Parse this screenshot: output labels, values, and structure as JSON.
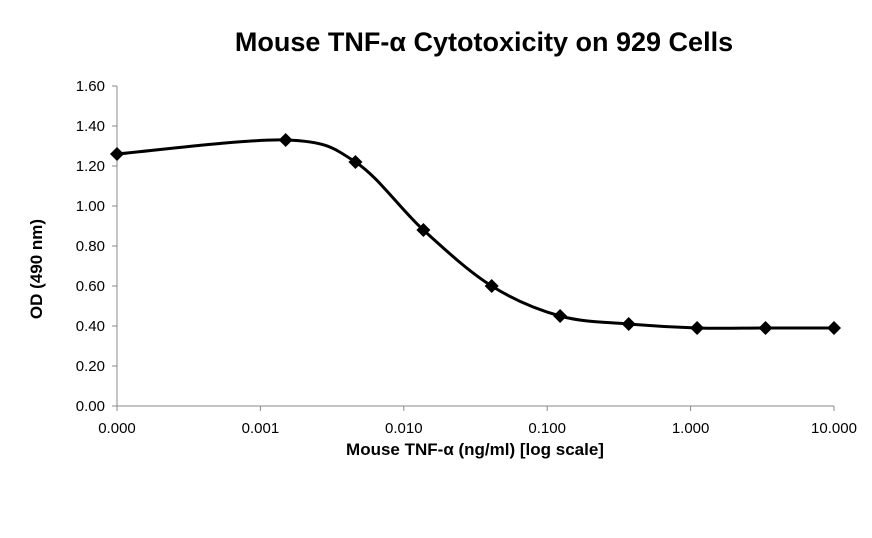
{
  "chart_data": {
    "type": "line",
    "title": "Mouse TNF-α Cytotoxicity on 929 Cells",
    "xlabel": "Mouse TNF-α (ng/ml) [log scale]",
    "ylabel": "OD (490 nm)",
    "x_scale": "log",
    "x_ticks": [
      "0.000",
      "0.001",
      "0.010",
      "0.100",
      "1.000",
      "10.000"
    ],
    "x_tick_values": [
      0.0001,
      0.001,
      0.01,
      0.1,
      1,
      10
    ],
    "xlim": [
      0.0001,
      10
    ],
    "ylim": [
      0,
      1.6
    ],
    "y_ticks": [
      "0.00",
      "0.20",
      "0.40",
      "0.60",
      "0.80",
      "1.00",
      "1.20",
      "1.40",
      "1.60"
    ],
    "grid": false,
    "line_color": "#000000",
    "marker": "diamond",
    "series": [
      {
        "x": [
          0.0001,
          0.0015,
          0.0046,
          0.0137,
          0.041,
          0.123,
          0.37,
          1.11,
          3.33,
          10
        ],
        "y": [
          1.26,
          1.33,
          1.22,
          0.88,
          0.6,
          0.45,
          0.41,
          0.39,
          0.39,
          0.39
        ]
      }
    ]
  }
}
